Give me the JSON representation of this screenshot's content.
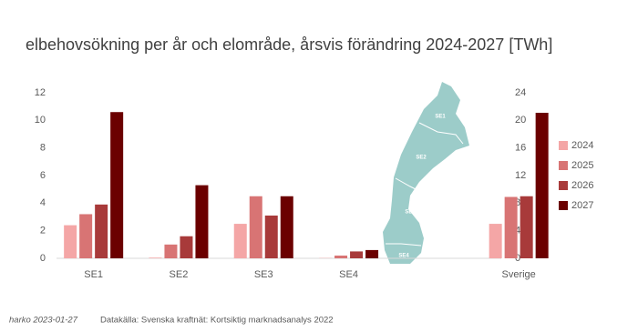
{
  "chart_data": [
    {
      "type": "bar",
      "title": "elbehovsökning per år och elområde, årsvis förändring 2024-2027 [TWh]",
      "categories": [
        "SE1",
        "SE2",
        "SE3",
        "SE4",
        null
      ],
      "series": [
        {
          "name": "2024",
          "color": "#f4a6a6",
          "values": [
            2.4,
            0.05,
            2.5,
            0.02,
            null
          ]
        },
        {
          "name": "2025",
          "color": "#d87474",
          "values": [
            3.2,
            1.0,
            4.5,
            0.2,
            null
          ]
        },
        {
          "name": "2026",
          "color": "#a83a3a",
          "values": [
            3.9,
            1.6,
            3.1,
            0.5,
            null
          ]
        },
        {
          "name": "2027",
          "color": "#6b0000",
          "values": [
            10.6,
            5.3,
            4.5,
            0.6,
            null
          ]
        }
      ],
      "ylim": [
        0,
        12
      ],
      "yticks": [
        0,
        2,
        4,
        6,
        8,
        10,
        12
      ],
      "legend": "right",
      "annotations": [
        "harko 2023-01-27",
        "Datakälla: Svenska kraftnät: Kortsiktig marknadsanalys 2022"
      ]
    },
    {
      "type": "bar",
      "categories": [
        "Sverige"
      ],
      "series": [
        {
          "color": "#f4a6a6",
          "axis": "y2",
          "values": [
            5.0
          ]
        },
        {
          "color": "#d87474",
          "axis": "y2",
          "values": [
            8.9
          ]
        },
        {
          "color": "#a83a3a",
          "axis": "y2",
          "values": [
            9.0
          ]
        },
        {
          "color": "#6b0000",
          "axis": "y2",
          "values": [
            21.1
          ]
        }
      ],
      "y2lim": [
        0,
        24
      ],
      "y2ticks": [
        0,
        4,
        8,
        12,
        16,
        20,
        24
      ],
      "map_labels": [
        "SE1",
        "SE2",
        "SE3",
        "SE4"
      ]
    }
  ]
}
